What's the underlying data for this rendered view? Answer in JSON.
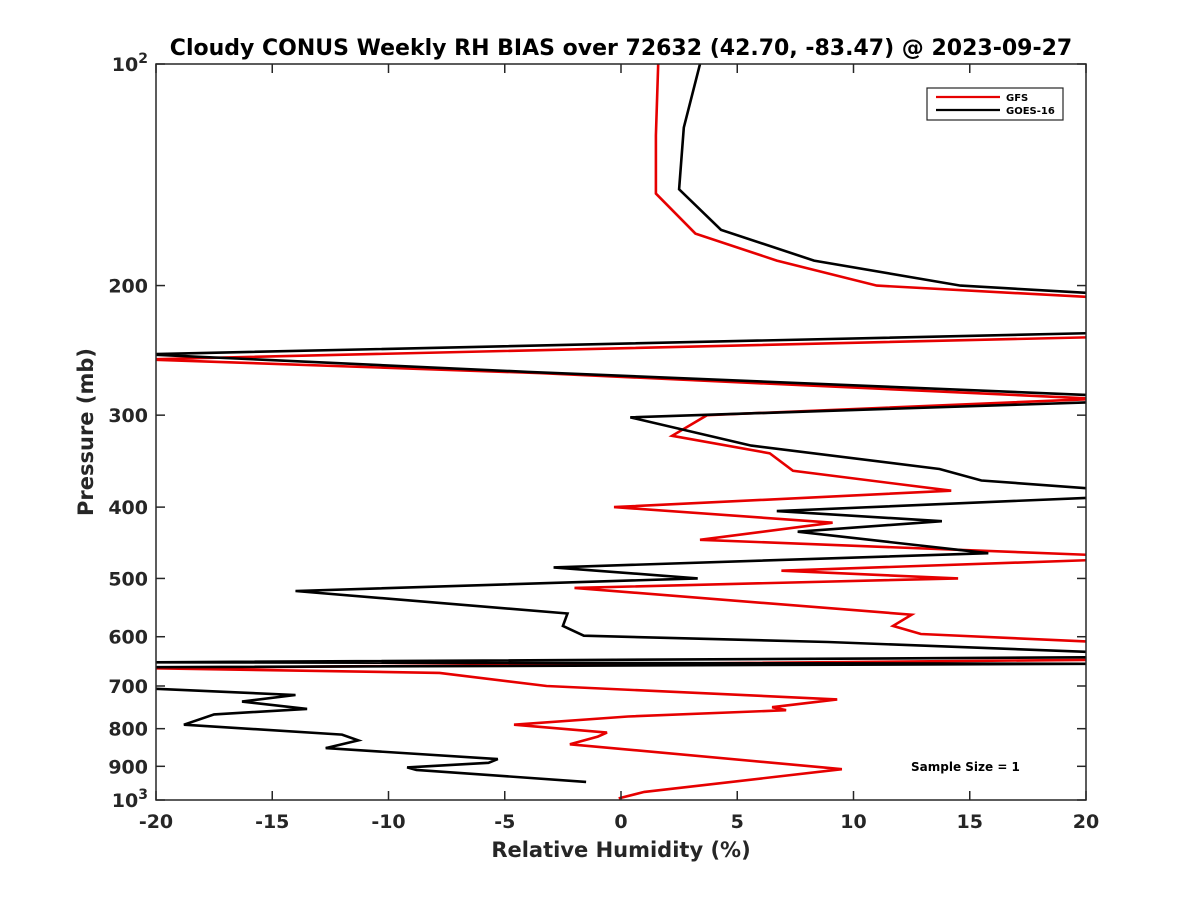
{
  "chart_data": {
    "type": "line",
    "title": "Cloudy CONUS Weekly RH BIAS over 72632 (42.70, -83.47) @ 2023-09-27",
    "xlabel": "Relative Humidity (%)",
    "ylabel": "Pressure (mb)",
    "xlim": [
      -20,
      20
    ],
    "ylim": [
      100,
      1000
    ],
    "yscale": "log",
    "y_reversed": true,
    "grid": false,
    "legend_position": "top-right",
    "x_ticks": [
      -20,
      -15,
      -10,
      -5,
      0,
      5,
      10,
      15,
      20
    ],
    "x_tick_labels": [
      "-20",
      "-15",
      "-10",
      "-5",
      "0",
      "5",
      "10",
      "15",
      "20"
    ],
    "y_ticks": [
      {
        "value": 100,
        "base": "10",
        "exp": "2"
      },
      {
        "value": 200,
        "label": "200"
      },
      {
        "value": 300,
        "label": "300"
      },
      {
        "value": 400,
        "label": "400"
      },
      {
        "value": 500,
        "label": "500"
      },
      {
        "value": 600,
        "label": "600"
      },
      {
        "value": 700,
        "label": "700"
      },
      {
        "value": 800,
        "label": "800"
      },
      {
        "value": 900,
        "label": "900"
      },
      {
        "value": 1000,
        "base": "10",
        "exp": "3"
      }
    ],
    "annotation": "Sample Size = 1",
    "series": [
      {
        "name": "GFS",
        "color": "#e60000",
        "points": [
          [
            1.6,
            100
          ],
          [
            1.5,
            125
          ],
          [
            1.5,
            150
          ],
          [
            3.2,
            170
          ],
          [
            6.7,
            185
          ],
          [
            11.0,
            200
          ],
          [
            21.0,
            208
          ],
          [
            20.5,
            235
          ],
          [
            -20.5,
            252
          ],
          [
            -3.5,
            263
          ],
          [
            20.5,
            285
          ],
          [
            3.7,
            300
          ],
          [
            2.2,
            320
          ],
          [
            6.4,
            338
          ],
          [
            7.4,
            357
          ],
          [
            14.2,
            380
          ],
          [
            -0.3,
            400
          ],
          [
            9.1,
            420
          ],
          [
            3.4,
            443
          ],
          [
            20.5,
            465
          ],
          [
            20.3,
            472
          ],
          [
            6.9,
            488
          ],
          [
            14.5,
            500
          ],
          [
            -2.0,
            515
          ],
          [
            12.5,
            560
          ],
          [
            11.7,
            580
          ],
          [
            12.9,
            595
          ],
          [
            20.5,
            610
          ],
          [
            20.5,
            645
          ],
          [
            -20.5,
            662
          ],
          [
            -7.8,
            672
          ],
          [
            -3.2,
            700
          ],
          [
            9.3,
            730
          ],
          [
            6.5,
            748
          ],
          [
            7.1,
            755
          ],
          [
            0.3,
            770
          ],
          [
            -4.6,
            790
          ],
          [
            -0.6,
            810
          ],
          [
            -1.0,
            820
          ],
          [
            -2.2,
            840
          ],
          [
            8.7,
            903
          ],
          [
            9.5,
            908
          ],
          [
            1.0,
            975
          ],
          [
            -0.1,
            995
          ]
        ]
      },
      {
        "name": "GOES-16",
        "color": "#000000",
        "points": [
          [
            3.4,
            100
          ],
          [
            2.7,
            122
          ],
          [
            2.5,
            148
          ],
          [
            4.3,
            168
          ],
          [
            8.3,
            185
          ],
          [
            14.6,
            200
          ],
          [
            20.5,
            205
          ],
          [
            20.5,
            232
          ],
          [
            -20.5,
            248
          ],
          [
            -4.0,
            262
          ],
          [
            20.5,
            282
          ],
          [
            20.5,
            288
          ],
          [
            0.4,
            302
          ],
          [
            5.6,
            330
          ],
          [
            13.7,
            355
          ],
          [
            15.5,
            368
          ],
          [
            20.5,
            378
          ],
          [
            20.5,
            388
          ],
          [
            6.7,
            405
          ],
          [
            13.8,
            418
          ],
          [
            7.6,
            432
          ],
          [
            15.8,
            462
          ],
          [
            -2.9,
            483
          ],
          [
            3.3,
            500
          ],
          [
            -14.0,
            520
          ],
          [
            -2.3,
            558
          ],
          [
            -2.5,
            580
          ],
          [
            -1.6,
            598
          ],
          [
            8.9,
            610
          ],
          [
            20.5,
            630
          ],
          [
            20.5,
            640
          ],
          [
            -20.5,
            650
          ],
          [
            20.5,
            653
          ],
          [
            -20.5,
            660
          ],
          [
            -20.5,
            705
          ],
          [
            -14.0,
            720
          ],
          [
            -16.3,
            735
          ],
          [
            -13.5,
            752
          ],
          [
            -17.5,
            765
          ],
          [
            -18.8,
            790
          ],
          [
            -12.0,
            815
          ],
          [
            -11.3,
            830
          ],
          [
            -12.7,
            850
          ],
          [
            -5.3,
            880
          ],
          [
            -5.7,
            890
          ],
          [
            -9.2,
            903
          ],
          [
            -8.8,
            910
          ],
          [
            -1.5,
            945
          ]
        ]
      }
    ]
  }
}
